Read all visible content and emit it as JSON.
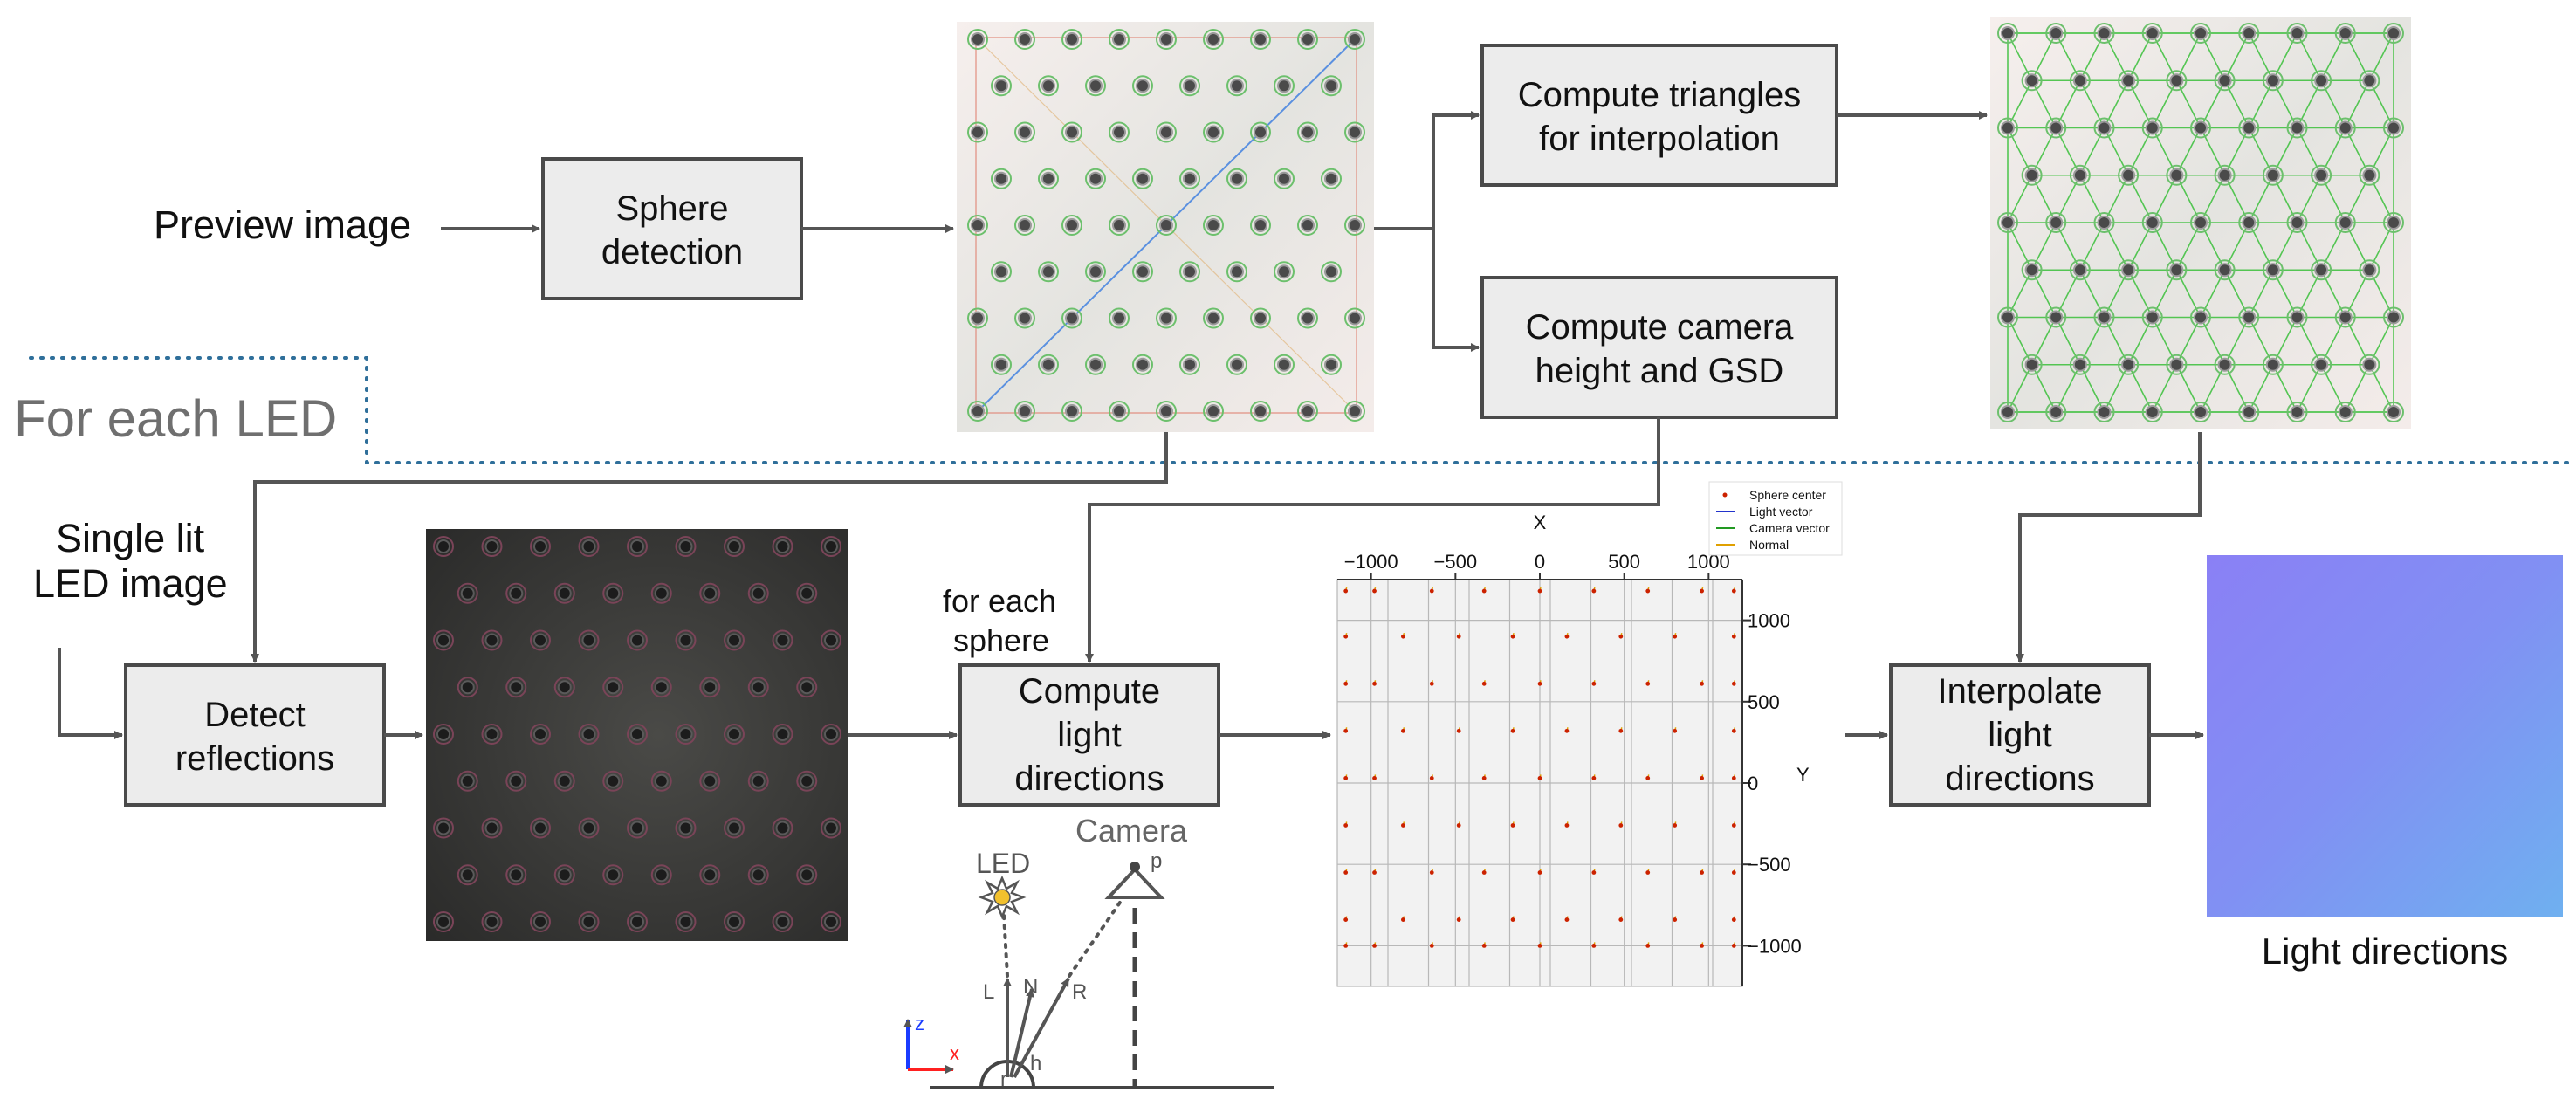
{
  "labels": {
    "preview_image": "Preview image",
    "for_each_led": "For each LED",
    "single_lit_1": "Single lit",
    "single_lit_2": "LED image",
    "for_each_sphere_1": "for each",
    "for_each_sphere_2": "sphere",
    "light_directions": "Light directions"
  },
  "boxes": {
    "sphere_detection": [
      "Sphere",
      "detection"
    ],
    "compute_triangles": [
      "Compute triangles",
      "for interpolation"
    ],
    "compute_camera": [
      "Compute camera",
      "height and GSD"
    ],
    "detect_reflections": [
      "Detect",
      "reflections"
    ],
    "compute_light": [
      "Compute",
      "light",
      "directions"
    ],
    "interpolate": [
      "Interpolate",
      "light",
      "directions"
    ]
  },
  "schematic": {
    "led": "LED",
    "camera": "Camera",
    "p": "p",
    "L": "L",
    "N": "N",
    "R": "R",
    "h": "h",
    "r": "r",
    "z": "z",
    "x": "x"
  },
  "colors": {
    "arrow": "#555555",
    "box_fill": "#ececec",
    "dotted_line": "#2f6f9a",
    "led_yellow": "#f2c12e",
    "axis_z": "#1a3cff",
    "axis_x": "#ff2020",
    "normal_map_top": "#8a80f5",
    "normal_map_bottom": "#6fa8f2"
  },
  "chart_data": {
    "type": "scatter",
    "xlabel": "X",
    "ylabel": "Y",
    "xlim": [
      -1200,
      1200
    ],
    "ylim": [
      -1250,
      1250
    ],
    "x_ticks": [
      -1000,
      -500,
      0,
      500,
      1000
    ],
    "y_ticks": [
      1000,
      500,
      0,
      -500,
      -1000
    ],
    "x_tick_labels": [
      "−1000",
      "−500",
      "0",
      "500",
      "1000"
    ],
    "y_tick_labels": [
      "1000",
      "500",
      "0",
      "−500",
      "−1000"
    ],
    "legend": [
      "Sphere center",
      "Light vector",
      "Camera vector",
      "Normal"
    ],
    "legend_colors": [
      "#cc2200",
      "#2233cc",
      "#229922",
      "#e0a000"
    ],
    "grid": true,
    "series": [
      {
        "name": "Sphere center",
        "x": [
          -1150,
          -980,
          -640,
          -330,
          0,
          320,
          640,
          960,
          1150,
          -1150,
          -810,
          -480,
          -160,
          160,
          480,
          800,
          1150,
          -1150,
          -980,
          -640,
          -330,
          0,
          320,
          640,
          960,
          1150,
          -1150,
          -810,
          -480,
          -160,
          160,
          480,
          800,
          1150,
          -1150,
          -980,
          -640,
          -330,
          0,
          320,
          640,
          960,
          1150,
          -1150,
          -810,
          -480,
          -160,
          160,
          480,
          800,
          1150,
          -1150,
          -980,
          -640,
          -330,
          0,
          320,
          640,
          960,
          1150,
          -1150,
          -810,
          -480,
          -160,
          160,
          480,
          800,
          1150,
          -1150,
          -980,
          -640,
          -330,
          0,
          320,
          640,
          960,
          1150
        ],
        "y": [
          1180,
          1180,
          1180,
          1180,
          1180,
          1180,
          1180,
          1180,
          1180,
          900,
          900,
          900,
          900,
          900,
          900,
          900,
          900,
          610,
          610,
          610,
          610,
          610,
          610,
          610,
          610,
          610,
          320,
          320,
          320,
          320,
          320,
          320,
          320,
          320,
          30,
          30,
          30,
          30,
          30,
          30,
          30,
          30,
          30,
          -260,
          -260,
          -260,
          -260,
          -260,
          -260,
          -260,
          -260,
          -550,
          -550,
          -550,
          -550,
          -550,
          -550,
          -550,
          -550,
          -550,
          -840,
          -840,
          -840,
          -840,
          -840,
          -840,
          -840,
          -840,
          -1000,
          -1000,
          -1000,
          -1000,
          -1000,
          -1000,
          -1000,
          -1000,
          -1000
        ]
      }
    ]
  }
}
